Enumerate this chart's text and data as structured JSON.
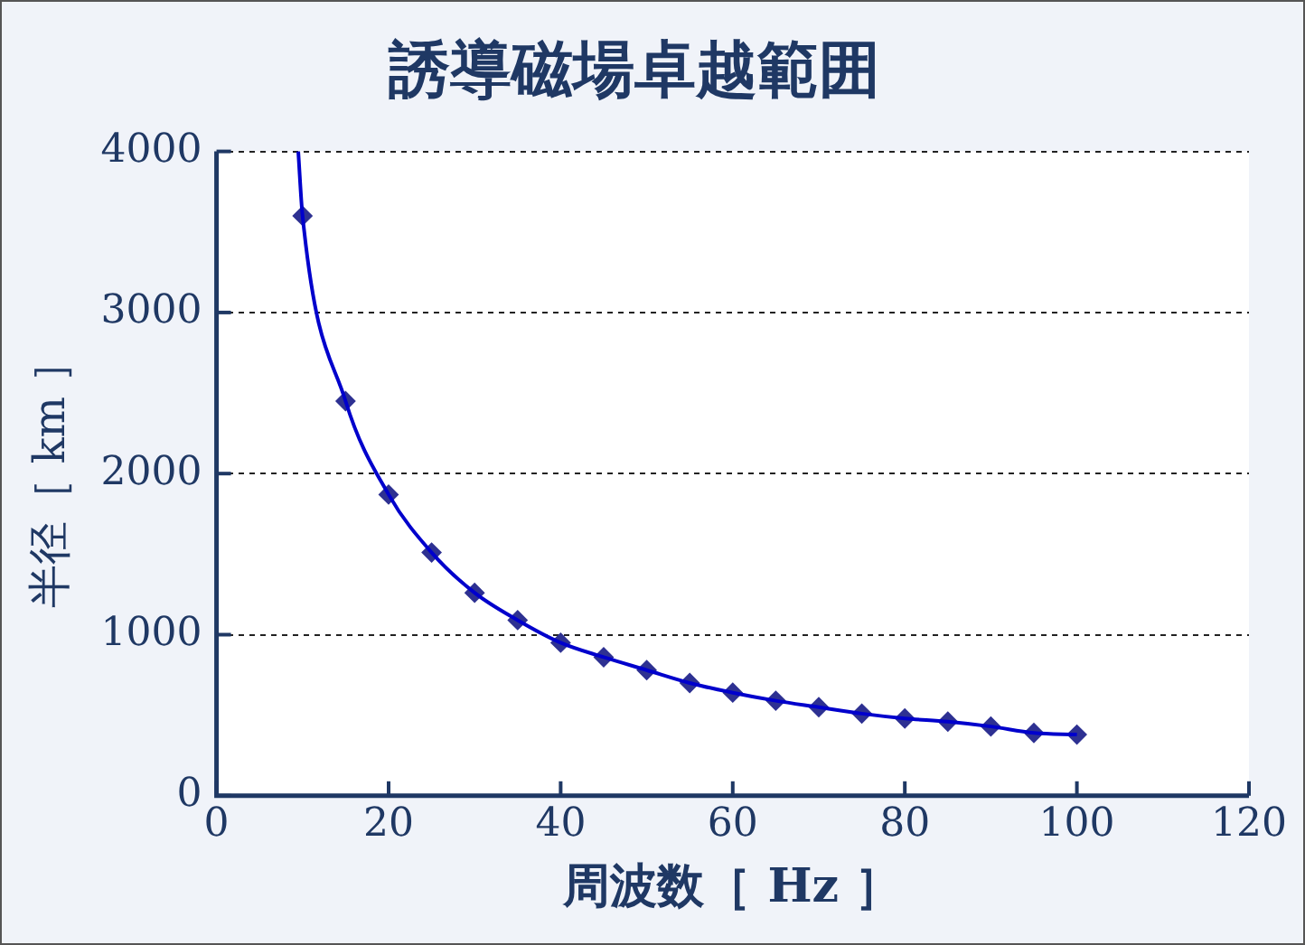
{
  "chart_data": {
    "type": "line",
    "title": "誘導磁場卓越範囲",
    "xlabel": "周波数［ Hz ］",
    "ylabel": "半径［ km ］",
    "xlim": [
      0,
      120
    ],
    "xticks": [
      0,
      20,
      40,
      60,
      80,
      100,
      120
    ],
    "ylim": [
      0,
      4000
    ],
    "yticks": [
      0,
      1000,
      2000,
      3000,
      4000
    ],
    "grid": "y",
    "legend": false,
    "series": [
      {
        "type": "line",
        "color": "#0000cc",
        "marker": "none",
        "line_style": "solid",
        "x": [
          9.5,
          10,
          15,
          20,
          25,
          30,
          35,
          40,
          45,
          50,
          55,
          60,
          65,
          70,
          75,
          80,
          85,
          90,
          95,
          100
        ],
        "values": [
          4000,
          3600,
          2450,
          1870,
          1510,
          1260,
          1090,
          950,
          860,
          780,
          700,
          640,
          590,
          550,
          510,
          480,
          460,
          430,
          390,
          380
        ]
      },
      {
        "type": "scatter",
        "color": "#2e3192",
        "marker": "diamond",
        "x": [
          10,
          15,
          20,
          25,
          30,
          35,
          40,
          45,
          50,
          55,
          60,
          65,
          70,
          75,
          80,
          85,
          90,
          95,
          100
        ],
        "values": [
          3600,
          2450,
          1870,
          1510,
          1260,
          1090,
          950,
          860,
          780,
          700,
          640,
          590,
          550,
          510,
          480,
          460,
          430,
          390,
          380
        ]
      }
    ]
  }
}
